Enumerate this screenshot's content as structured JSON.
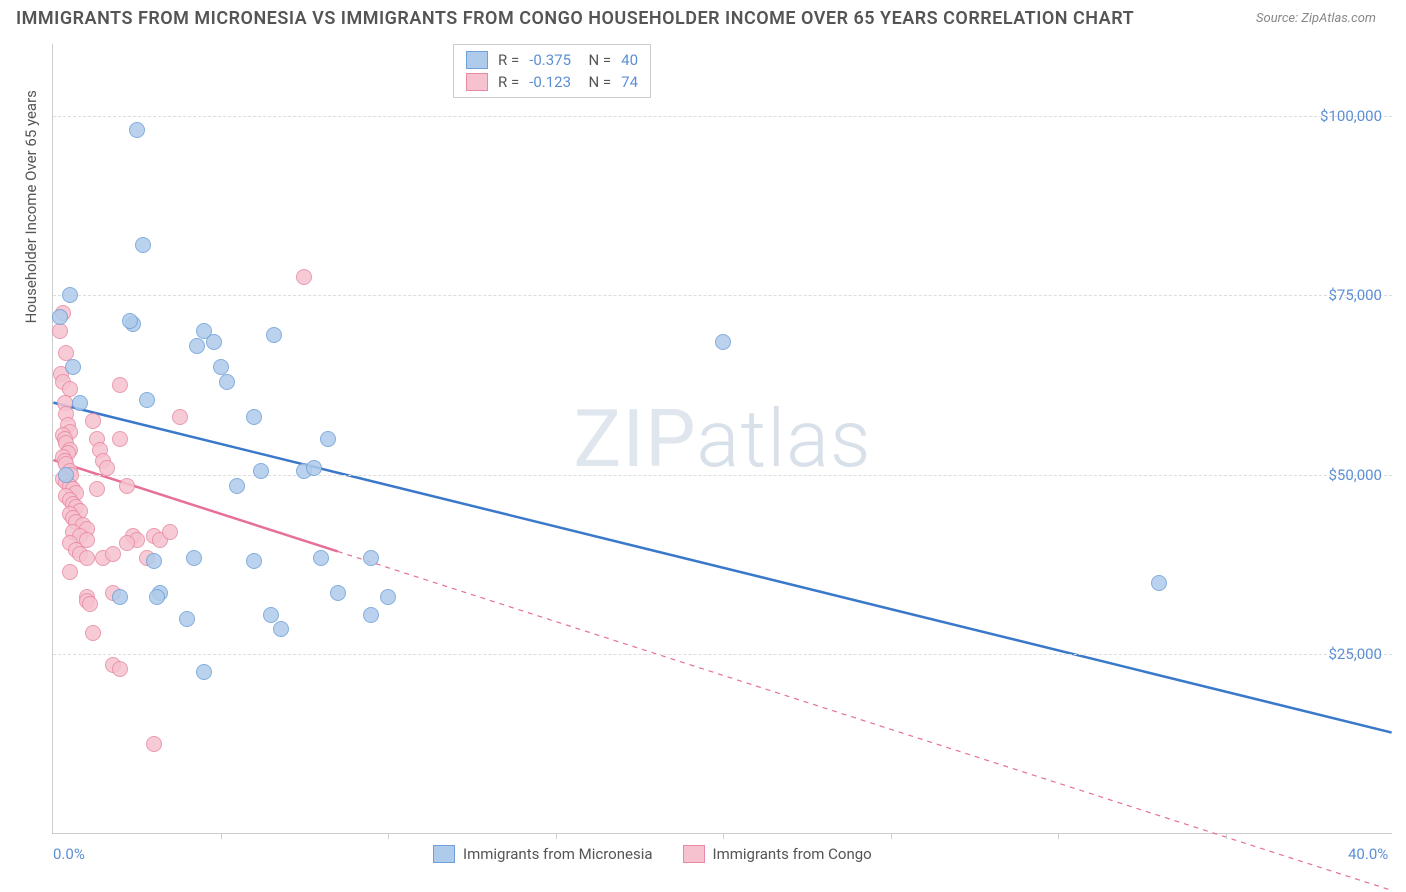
{
  "header": {
    "title": "IMMIGRANTS FROM MICRONESIA VS IMMIGRANTS FROM CONGO HOUSEHOLDER INCOME OVER 65 YEARS CORRELATION CHART",
    "source_label": "Source: ZipAtlas.com"
  },
  "chart": {
    "type": "scatter",
    "watermark": "ZIPatlas",
    "ylabel": "Householder Income Over 65 years",
    "x_domain": [
      0,
      40
    ],
    "y_domain": [
      0,
      110000
    ],
    "x_ticks": [
      0,
      40
    ],
    "x_tick_labels": [
      "0.0%",
      "40.0%"
    ],
    "x_minor_ticks": [
      5,
      10,
      15,
      20,
      25,
      30,
      35
    ],
    "y_ticks": [
      25000,
      50000,
      75000,
      100000
    ],
    "y_tick_labels": [
      "$25,000",
      "$50,000",
      "$75,000",
      "$100,000"
    ],
    "background_color": "#ffffff",
    "grid_color": "#dddddd",
    "axis_color": "#cccccc",
    "tick_label_color": "#5b8fd6",
    "series": [
      {
        "name": "Immigrants from Micronesia",
        "color_fill": "#aecbeb",
        "color_stroke": "#6fa0d8",
        "R": "-0.375",
        "N": "40",
        "marker_radius": 8,
        "trend": {
          "x1": 0,
          "y1": 60000,
          "x2": 40,
          "y2": 14000,
          "color": "#3a78c9",
          "width": 2.5,
          "solid_until_x": 40
        },
        "points": [
          [
            0.5,
            75000
          ],
          [
            0.2,
            72000
          ],
          [
            0.8,
            60000
          ],
          [
            0.6,
            65000
          ],
          [
            0.4,
            50000
          ],
          [
            2.5,
            98000
          ],
          [
            2.7,
            82000
          ],
          [
            2.4,
            71000
          ],
          [
            2.3,
            71500
          ],
          [
            2.8,
            60500
          ],
          [
            2.0,
            33000
          ],
          [
            3.0,
            38000
          ],
          [
            3.2,
            33500
          ],
          [
            3.1,
            33000
          ],
          [
            4.5,
            70000
          ],
          [
            4.3,
            68000
          ],
          [
            4.8,
            68500
          ],
          [
            4.2,
            38500
          ],
          [
            4.0,
            30000
          ],
          [
            4.5,
            22500
          ],
          [
            5.0,
            65000
          ],
          [
            5.2,
            63000
          ],
          [
            5.5,
            48500
          ],
          [
            6.0,
            58000
          ],
          [
            6.2,
            50500
          ],
          [
            6.6,
            69500
          ],
          [
            6.0,
            38000
          ],
          [
            6.5,
            30500
          ],
          [
            6.8,
            28500
          ],
          [
            7.5,
            50500
          ],
          [
            7.8,
            51000
          ],
          [
            8.2,
            55000
          ],
          [
            8.0,
            38500
          ],
          [
            8.5,
            33500
          ],
          [
            9.5,
            38500
          ],
          [
            9.5,
            30500
          ],
          [
            10.0,
            33000
          ],
          [
            20.0,
            68500
          ],
          [
            33.0,
            35000
          ]
        ]
      },
      {
        "name": "Immigrants from Congo",
        "color_fill": "#f6c2cf",
        "color_stroke": "#e88aa3",
        "R": "-0.123",
        "N": "74",
        "marker_radius": 8,
        "trend": {
          "x1": 0,
          "y1": 52000,
          "x2": 40,
          "y2": -8000,
          "color": "#e77096",
          "width": 2.5,
          "solid_until_x": 8.5
        },
        "points": [
          [
            0.3,
            72500
          ],
          [
            0.2,
            70000
          ],
          [
            0.4,
            67000
          ],
          [
            0.25,
            64000
          ],
          [
            0.3,
            63000
          ],
          [
            0.5,
            62000
          ],
          [
            0.35,
            60000
          ],
          [
            0.4,
            58500
          ],
          [
            0.45,
            57000
          ],
          [
            0.5,
            56000
          ],
          [
            0.3,
            55500
          ],
          [
            0.35,
            55000
          ],
          [
            0.4,
            54500
          ],
          [
            0.5,
            53500
          ],
          [
            0.45,
            53000
          ],
          [
            0.3,
            52500
          ],
          [
            0.35,
            52000
          ],
          [
            0.4,
            51500
          ],
          [
            0.5,
            50500
          ],
          [
            0.55,
            50000
          ],
          [
            0.3,
            49500
          ],
          [
            0.4,
            49000
          ],
          [
            0.5,
            48500
          ],
          [
            0.6,
            48000
          ],
          [
            0.7,
            47500
          ],
          [
            0.4,
            47000
          ],
          [
            0.5,
            46500
          ],
          [
            0.6,
            46000
          ],
          [
            0.7,
            45500
          ],
          [
            0.8,
            45000
          ],
          [
            0.5,
            44500
          ],
          [
            0.6,
            44000
          ],
          [
            0.7,
            43500
          ],
          [
            0.9,
            43000
          ],
          [
            1.0,
            42500
          ],
          [
            0.6,
            42000
          ],
          [
            0.8,
            41500
          ],
          [
            1.0,
            41000
          ],
          [
            0.5,
            40500
          ],
          [
            0.7,
            39500
          ],
          [
            0.8,
            39000
          ],
          [
            1.0,
            38500
          ],
          [
            0.5,
            36500
          ],
          [
            1.0,
            33000
          ],
          [
            1.0,
            32500
          ],
          [
            1.1,
            32000
          ],
          [
            1.2,
            57500
          ],
          [
            1.3,
            55000
          ],
          [
            1.4,
            53500
          ],
          [
            1.5,
            52000
          ],
          [
            1.6,
            51000
          ],
          [
            1.3,
            48000
          ],
          [
            1.5,
            38500
          ],
          [
            1.8,
            33500
          ],
          [
            1.8,
            39000
          ],
          [
            1.2,
            28000
          ],
          [
            1.8,
            23500
          ],
          [
            2.0,
            23000
          ],
          [
            2.0,
            62500
          ],
          [
            2.0,
            55000
          ],
          [
            2.2,
            48500
          ],
          [
            2.4,
            41500
          ],
          [
            2.5,
            41000
          ],
          [
            2.2,
            40500
          ],
          [
            2.8,
            38500
          ],
          [
            3.0,
            41500
          ],
          [
            3.2,
            41000
          ],
          [
            3.5,
            42000
          ],
          [
            3.0,
            12500
          ],
          [
            3.8,
            58000
          ],
          [
            7.5,
            77500
          ]
        ]
      }
    ]
  }
}
